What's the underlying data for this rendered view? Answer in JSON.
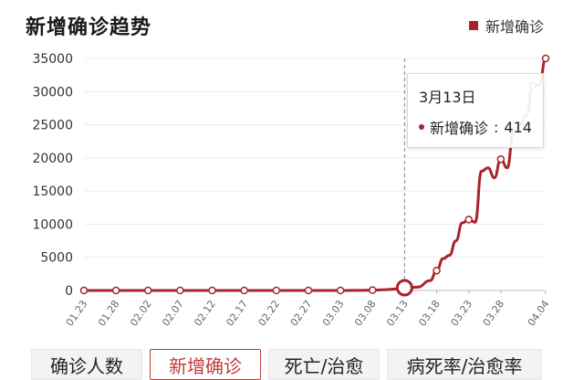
{
  "legend": {
    "label": "新增确诊",
    "color": "#a8232a"
  },
  "tooltip": {
    "date": "3月13日",
    "series": "新增确诊",
    "value": "414"
  },
  "tabs": [
    {
      "label": "确诊人数",
      "active": false
    },
    {
      "label": "新增确诊",
      "active": true
    },
    {
      "label": "死亡/治愈",
      "active": false
    },
    {
      "label": "病死率/治愈率",
      "active": false
    }
  ],
  "chart_data": {
    "type": "line",
    "title": "新增确诊趋势",
    "xlabel": "",
    "ylabel": "",
    "ylim": [
      0,
      35000
    ],
    "yticks": [
      0,
      5000,
      10000,
      15000,
      20000,
      25000,
      30000,
      35000
    ],
    "xtick_labels": [
      "01.23",
      "01.28",
      "02.02",
      "02.07",
      "02.12",
      "02.17",
      "02.22",
      "02.27",
      "03.03",
      "03.08",
      "03.13",
      "03.18",
      "03.23",
      "03.28",
      "04.04"
    ],
    "grid": true,
    "legend_position": "top-right",
    "highlight": {
      "x": "03.13",
      "value": 414
    },
    "series": [
      {
        "name": "新增确诊",
        "color": "#a8232a",
        "x": [
          "01.23",
          "01.28",
          "02.02",
          "02.07",
          "02.12",
          "02.17",
          "02.22",
          "02.27",
          "03.03",
          "03.06",
          "03.08",
          "03.10",
          "03.12",
          "03.13",
          "03.15",
          "03.17",
          "03.18",
          "03.19",
          "03.20",
          "03.21",
          "03.22",
          "03.23",
          "03.24",
          "03.25",
          "03.26",
          "03.27",
          "03.28",
          "03.29",
          "03.30",
          "03.31",
          "04.01",
          "04.02",
          "04.03",
          "04.04"
        ],
        "values": [
          0,
          0,
          0,
          0,
          0,
          0,
          0,
          0,
          0,
          20,
          50,
          120,
          250,
          414,
          500,
          1500,
          3000,
          4800,
          5300,
          7500,
          10200,
          10700,
          10300,
          18000,
          18500,
          17000,
          19800,
          18500,
          24000,
          25000,
          26500,
          30900,
          31000,
          35000
        ]
      }
    ]
  }
}
